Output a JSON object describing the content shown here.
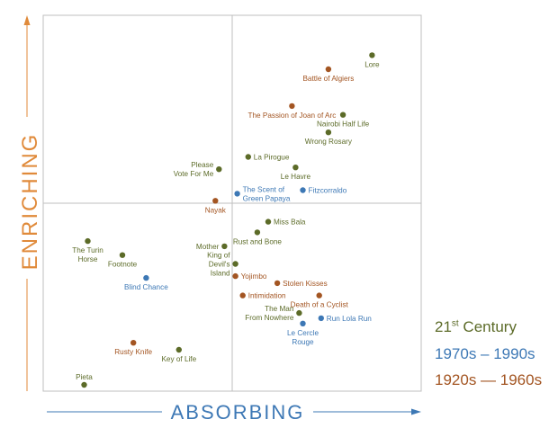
{
  "chart_data": {
    "type": "scatter",
    "title": "",
    "xlabel": "ABSORBING",
    "ylabel": "ENRICHING",
    "xlim": [
      0,
      100
    ],
    "ylim": [
      0,
      100
    ],
    "grid": "quadrant lines at midpoint",
    "legend_position": "bottom-right",
    "series": [
      {
        "name": "21st Century",
        "color": "#5c6b28"
      },
      {
        "name": "1970s – 1990s",
        "color": "#3d78b5"
      },
      {
        "name": "1920s — 1960s",
        "color": "#a35522"
      }
    ],
    "points": [
      {
        "label": "Lore",
        "x": 89,
        "y": 94,
        "series": 0
      },
      {
        "label": "Battle of Algiers",
        "x": 77,
        "y": 90,
        "series": 2
      },
      {
        "label": "The Passion of Joan of Arc",
        "x": 67,
        "y": 79.5,
        "series": 2
      },
      {
        "label": "Nairobi Half Life",
        "x": 81,
        "y": 77,
        "series": 0
      },
      {
        "label": "Wrong Rosary",
        "x": 77,
        "y": 72,
        "series": 0
      },
      {
        "label": "La Pirogue",
        "x": 55,
        "y": 65,
        "series": 0
      },
      {
        "label": "Please Vote For Me",
        "x": 47,
        "y": 61.5,
        "series": 0
      },
      {
        "label": "Le Havre",
        "x": 68,
        "y": 62,
        "series": 0
      },
      {
        "label": "The Scent of Green Papaya",
        "x": 52,
        "y": 54.5,
        "series": 1
      },
      {
        "label": "Fitzcorraldo",
        "x": 70,
        "y": 55.5,
        "series": 1
      },
      {
        "label": "Nayak",
        "x": 46,
        "y": 52.5,
        "series": 2
      },
      {
        "label": "Miss Bala",
        "x": 60.5,
        "y": 46.5,
        "series": 0
      },
      {
        "label": "Rust and Bone",
        "x": 57.5,
        "y": 43.5,
        "series": 0
      },
      {
        "label": "The Turin Horse",
        "x": 11,
        "y": 41,
        "series": 0
      },
      {
        "label": "Mother",
        "x": 48.5,
        "y": 39.5,
        "series": 0
      },
      {
        "label": "Footnote",
        "x": 20.5,
        "y": 37,
        "series": 0
      },
      {
        "label": "King of Devil's Island",
        "x": 51.5,
        "y": 34.5,
        "series": 0
      },
      {
        "label": "Blind Chance",
        "x": 27,
        "y": 30.5,
        "series": 1
      },
      {
        "label": "Yojimbo",
        "x": 51.5,
        "y": 31,
        "series": 2
      },
      {
        "label": "Stolen Kisses",
        "x": 63,
        "y": 29,
        "series": 2
      },
      {
        "label": "Intimidation",
        "x": 53.5,
        "y": 25.5,
        "series": 2
      },
      {
        "label": "Death of a Cyclist",
        "x": 74.5,
        "y": 25.5,
        "series": 2
      },
      {
        "label": "The Man From Nowhere",
        "x": 69,
        "y": 20.5,
        "series": 0
      },
      {
        "label": "Run Lola Run",
        "x": 75,
        "y": 19,
        "series": 1
      },
      {
        "label": "Le Cercle Rouge",
        "x": 70,
        "y": 17.5,
        "series": 1
      },
      {
        "label": "Rusty Knife",
        "x": 23.5,
        "y": 12,
        "series": 2
      },
      {
        "label": "Key of Life",
        "x": 36,
        "y": 10,
        "series": 0
      },
      {
        "label": "Pieta",
        "x": 10,
        "y": 0,
        "series": 0
      }
    ]
  },
  "legend": {
    "century21_base": "21",
    "century21_sup": "st",
    "century21_rest": " Century",
    "era_1970s": "1970s – 1990s",
    "era_1920s": "1920s — 1960s"
  },
  "colors": {
    "axis_accent": "#e08a3a",
    "axis_arrow": "#3d78b5",
    "frame": "#bfbfbf"
  }
}
